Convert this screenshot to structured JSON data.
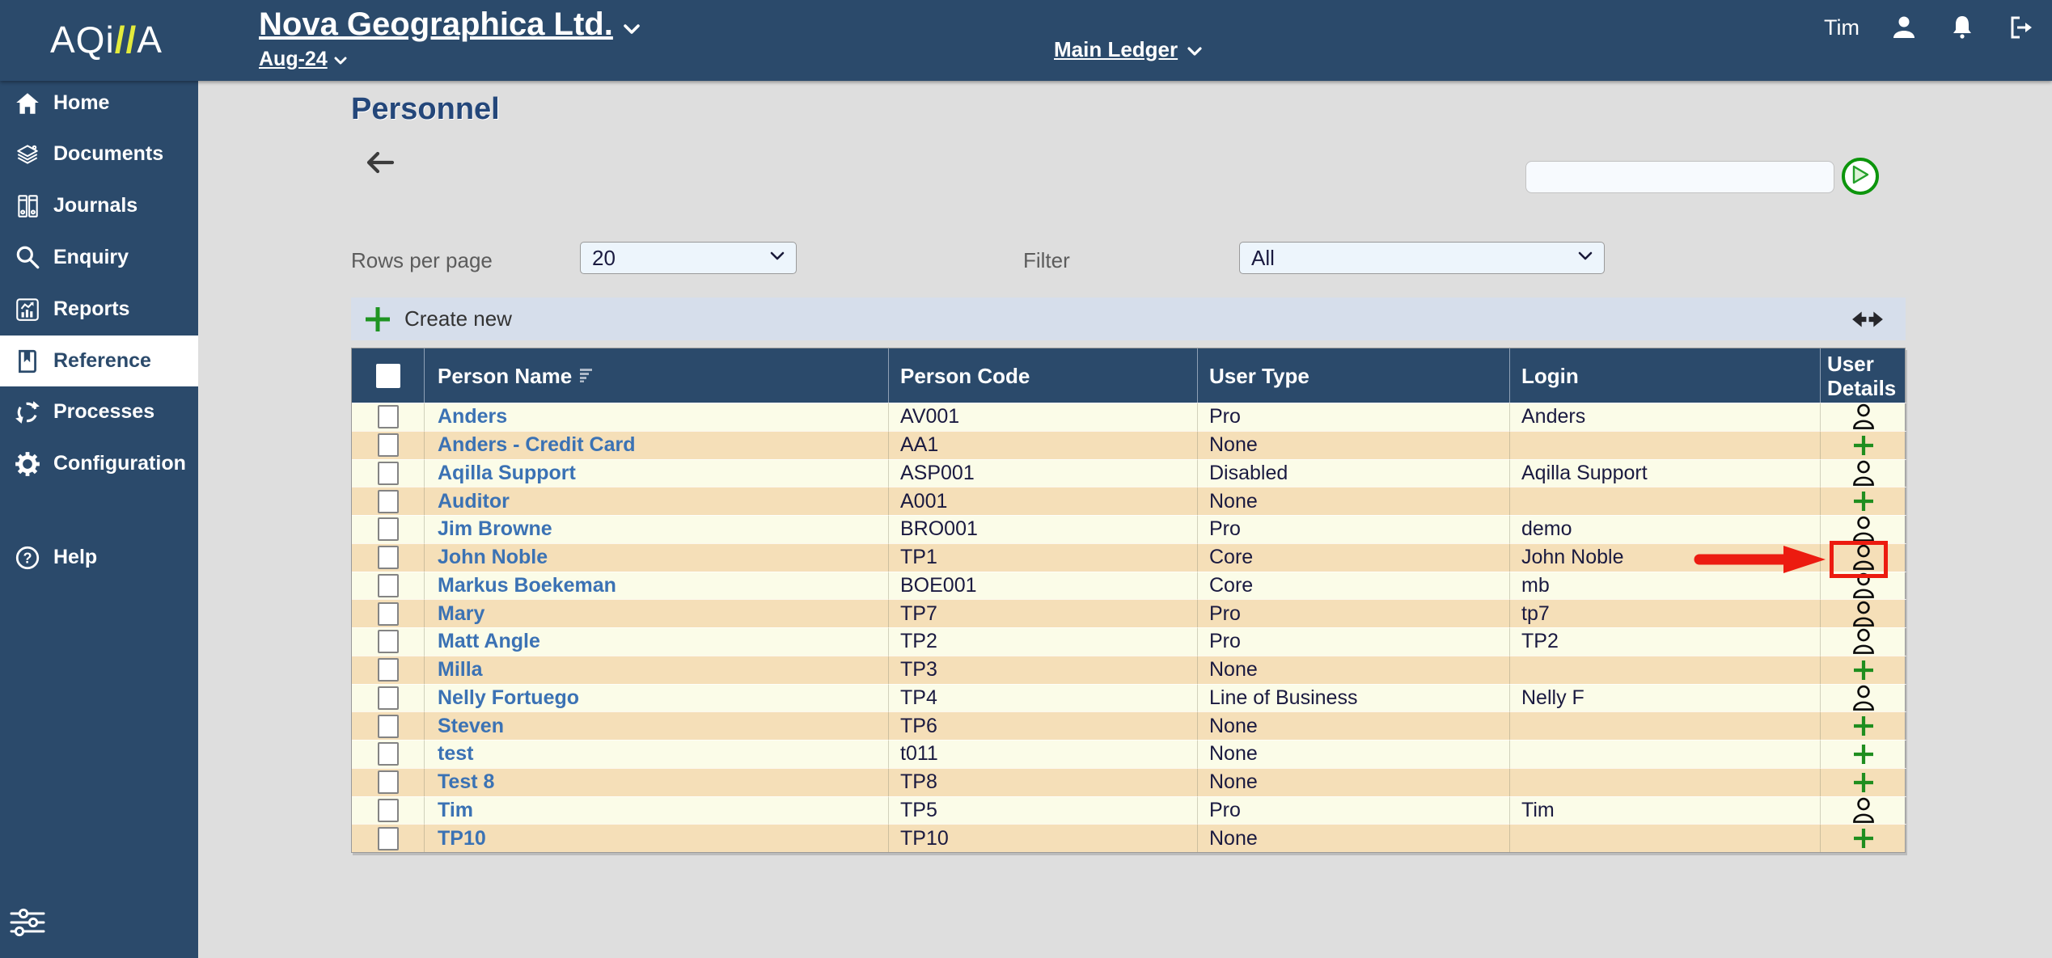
{
  "colors": {
    "navy": "#2B4A6B",
    "page-bg": "#DEDEDE",
    "bar-bg": "#D6DEEB",
    "row-cream": "#FBFCE8",
    "row-tan": "#F5DFB8",
    "link-blue": "#3B72B4",
    "text-dark": "#1A1A40",
    "green": "#1F9422",
    "red": "#EC1B10",
    "yellow": "#E3EB3C",
    "select-bg": "#EDF5FC",
    "input-bg": "#F7FAFE"
  },
  "header": {
    "logo": {
      "prefix": "AQi",
      "slashes": "//",
      "suffix": "A"
    },
    "company": "Nova Geographica Ltd.",
    "period": "Aug-24",
    "ledger": "Main Ledger",
    "user_name": "Tim",
    "icons": [
      "user-icon",
      "bell-icon",
      "logout-icon"
    ]
  },
  "sidebar": {
    "items": [
      {
        "label": "Home",
        "icon": "home-icon",
        "selected": false
      },
      {
        "label": "Documents",
        "icon": "documents-icon",
        "selected": false
      },
      {
        "label": "Journals",
        "icon": "journals-icon",
        "selected": false
      },
      {
        "label": "Enquiry",
        "icon": "search-icon",
        "selected": false
      },
      {
        "label": "Reports",
        "icon": "chart-icon",
        "selected": false
      },
      {
        "label": "Reference",
        "icon": "book-icon",
        "selected": true
      },
      {
        "label": "Processes",
        "icon": "cycle-icon",
        "selected": false
      },
      {
        "label": "Configuration",
        "icon": "gear-icon",
        "selected": false
      },
      {
        "label": "Help",
        "icon": "question-icon",
        "selected": false
      }
    ],
    "footer_icon": "sliders-icon"
  },
  "page": {
    "title": "Personnel",
    "search": {
      "value": "",
      "go_icon": "play-icon"
    },
    "rows_per_page": {
      "label": "Rows per page",
      "value": "20"
    },
    "filter": {
      "label": "Filter",
      "value": "All"
    },
    "create_new_label": "Create new",
    "resize_icon": "column-resize-icon"
  },
  "table": {
    "columns": [
      "Person Name",
      "Person Code",
      "User Type",
      "Login",
      "User Details"
    ],
    "rows": [
      {
        "name": "Anders",
        "code": "AV001",
        "user_type": "Pro",
        "login": "Anders",
        "details": "user"
      },
      {
        "name": "Anders - Credit Card",
        "code": "AA1",
        "user_type": "None",
        "login": "",
        "details": "add"
      },
      {
        "name": "Aqilla Support",
        "code": "ASP001",
        "user_type": "Disabled",
        "login": "Aqilla Support",
        "details": "user"
      },
      {
        "name": "Auditor",
        "code": "A001",
        "user_type": "None",
        "login": "",
        "details": "add"
      },
      {
        "name": "Jim Browne",
        "code": "BRO001",
        "user_type": "Pro",
        "login": "demo",
        "details": "user"
      },
      {
        "name": "John Noble",
        "code": "TP1",
        "user_type": "Core",
        "login": "John Noble",
        "details": "user"
      },
      {
        "name": "Markus Boekeman",
        "code": "BOE001",
        "user_type": "Core",
        "login": "mb",
        "details": "user"
      },
      {
        "name": "Mary",
        "code": "TP7",
        "user_type": "Pro",
        "login": "tp7",
        "details": "user"
      },
      {
        "name": "Matt Angle",
        "code": "TP2",
        "user_type": "Pro",
        "login": "TP2",
        "details": "user"
      },
      {
        "name": "Milla",
        "code": "TP3",
        "user_type": "None",
        "login": "",
        "details": "add"
      },
      {
        "name": "Nelly Fortuego",
        "code": "TP4",
        "user_type": "Line of Business",
        "login": "Nelly F",
        "details": "user"
      },
      {
        "name": "Steven",
        "code": "TP6",
        "user_type": "None",
        "login": "",
        "details": "add"
      },
      {
        "name": "test",
        "code": "t011",
        "user_type": "None",
        "login": "",
        "details": "add"
      },
      {
        "name": "Test 8",
        "code": "TP8",
        "user_type": "None",
        "login": "",
        "details": "add"
      },
      {
        "name": "Tim",
        "code": "TP5",
        "user_type": "Pro",
        "login": "Tim",
        "details": "user"
      },
      {
        "name": "TP10",
        "code": "TP10",
        "user_type": "None",
        "login": "",
        "details": "add"
      }
    ]
  },
  "annotation": {
    "type": "arrow-and-box",
    "color": "#EC1B10",
    "target": "user-details icon of row John Noble",
    "row_index": 5
  }
}
